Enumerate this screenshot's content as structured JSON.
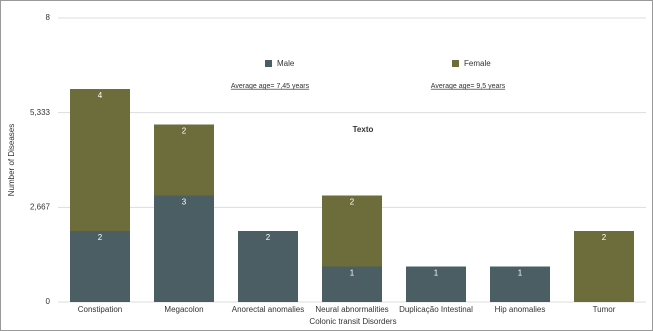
{
  "chart_data": {
    "type": "stacked-bar",
    "x_label": "Colonic transit Disorders",
    "y_label": "Number of Diseases",
    "categories": [
      "Constipation",
      "Megacolon",
      "Anorectal anomalies",
      "Neural abnormalities",
      "Duplicação Intestinal",
      "Hip anomalies",
      "Tumor"
    ],
    "series": [
      {
        "name": "Male",
        "color": "#4b5e63",
        "values": [
          2,
          3,
          2,
          1,
          1,
          1,
          0
        ]
      },
      {
        "name": "Female",
        "color": "#6d6d3b",
        "values": [
          4,
          2,
          0,
          2,
          0,
          0,
          2
        ]
      }
    ],
    "ylim": [
      0,
      8
    ],
    "yticks": [
      0,
      {
        "value": 2.667,
        "label": "2,667"
      },
      {
        "value": 5.333,
        "label": "5,333"
      },
      8
    ],
    "grid": true,
    "annotations": [
      "Average age= 7,45 years",
      "Average age= 9,5 years",
      "Texto"
    ]
  }
}
